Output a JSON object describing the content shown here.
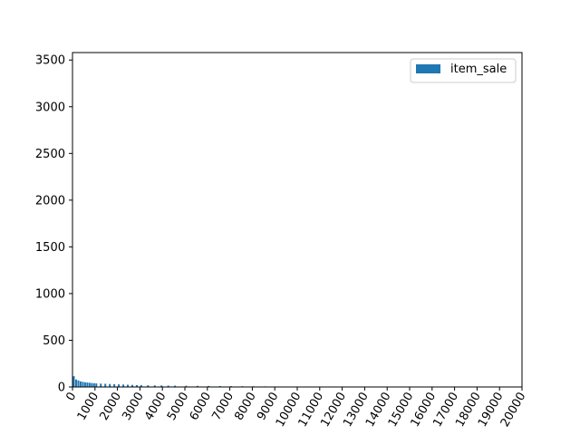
{
  "chart_data": {
    "type": "bar",
    "title": "",
    "xlabel": "",
    "ylabel": "",
    "xlim": [
      0,
      20000
    ],
    "ylim": [
      0,
      3580
    ],
    "grid": false,
    "legend_position": "top-right",
    "x_ticks": [
      0,
      1000,
      2000,
      3000,
      4000,
      5000,
      6000,
      7000,
      8000,
      9000,
      10000,
      11000,
      12000,
      13000,
      14000,
      15000,
      16000,
      17000,
      18000,
      19000,
      20000
    ],
    "x_tick_labels": [
      "0",
      "1000",
      "2000",
      "3000",
      "4000",
      "5000",
      "6000",
      "7000",
      "8000",
      "9000",
      "10000",
      "11000",
      "12000",
      "13000",
      "14000",
      "15000",
      "16000",
      "17000",
      "18000",
      "19000",
      "20000"
    ],
    "y_ticks": [
      0,
      500,
      1000,
      1500,
      2000,
      2500,
      3000,
      3500
    ],
    "y_tick_labels": [
      "0",
      "500",
      "1000",
      "1500",
      "2000",
      "2500",
      "3000",
      "3500"
    ],
    "series": [
      {
        "name": "item_sale",
        "color": "#1f77b4",
        "x": [
          0,
          100,
          200,
          300,
          400,
          500,
          600,
          700,
          800,
          900,
          1000,
          1200,
          1400,
          1600,
          1800,
          2000,
          2200,
          2400,
          2600,
          2800,
          3000,
          3300,
          3600,
          3900,
          4200,
          4500,
          5000,
          5500,
          6000,
          6500,
          7000,
          7500,
          8000,
          8500,
          9000,
          9500,
          10000
        ],
        "values": [
          115,
          80,
          70,
          60,
          55,
          50,
          48,
          45,
          42,
          40,
          38,
          36,
          34,
          32,
          30,
          28,
          26,
          24,
          22,
          20,
          19,
          18,
          17,
          16,
          15,
          14,
          13,
          12,
          11,
          10,
          9,
          8,
          7,
          6,
          5,
          4,
          3
        ]
      }
    ]
  }
}
